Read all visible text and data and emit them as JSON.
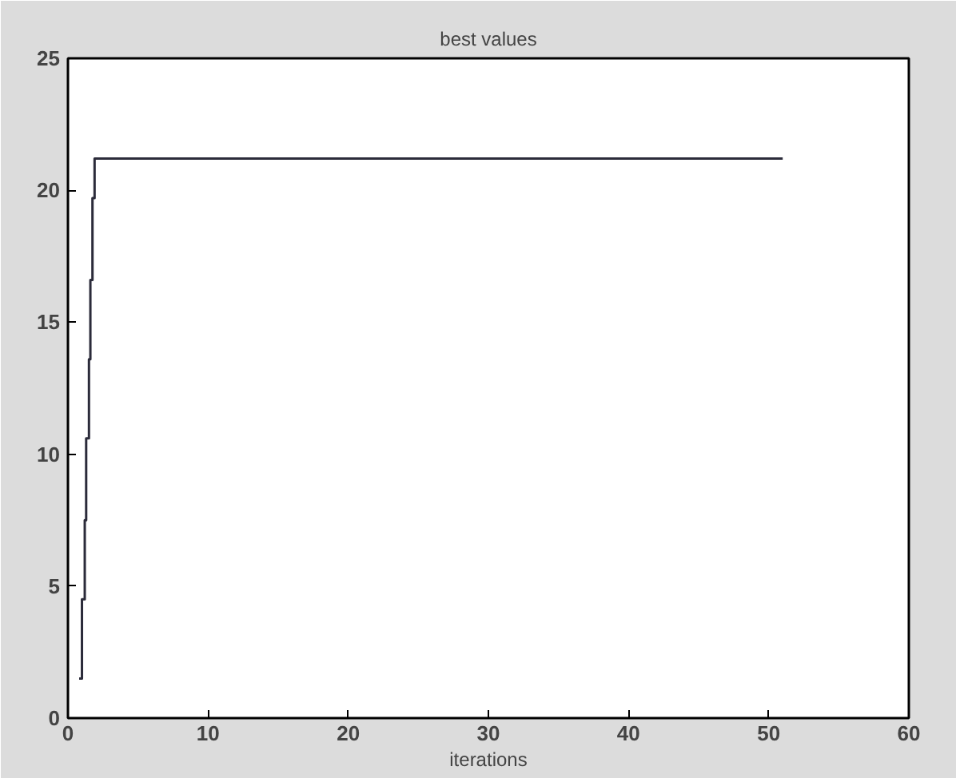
{
  "chart_data": {
    "type": "step",
    "title": "best values",
    "xlabel": "iterations",
    "x": [
      0.8,
      1.0,
      1.2,
      1.3,
      1.5,
      1.6,
      1.75,
      1.9,
      51
    ],
    "series": [
      {
        "color": "#2b2b3a",
        "values": [
          1.5,
          4.5,
          7.5,
          10.6,
          13.6,
          16.6,
          19.7,
          21.2,
          21.2
        ]
      }
    ],
    "xlim": [
      0,
      60
    ],
    "ylim": [
      0,
      25
    ],
    "xticks": [
      0,
      10,
      20,
      30,
      40,
      50,
      60
    ],
    "yticks": [
      0,
      5,
      10,
      15,
      20,
      25
    ],
    "grid": false
  }
}
